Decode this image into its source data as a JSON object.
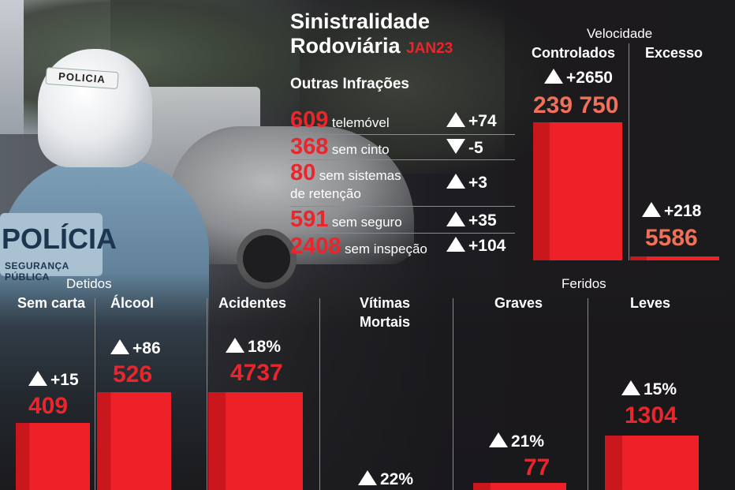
{
  "header": {
    "title_line1": "Sinistralidade",
    "title_line2": "Rodoviária",
    "period": "JAN23"
  },
  "background": {
    "helmet_text": "POLICIA",
    "vest_text": "POLÍCIA",
    "vest_subtext": "SEGURANÇA PÚBLICA"
  },
  "infractions": {
    "heading": "Outras Infrações",
    "rows": [
      {
        "value": "609",
        "label": "telemóvel",
        "direction": "up",
        "change": "+74"
      },
      {
        "value": "368",
        "label": "sem cinto",
        "direction": "down",
        "change": "-5"
      },
      {
        "value": "80",
        "label_line1": "sem sistemas",
        "label_line2": "de retenção",
        "direction": "up",
        "change": "+3"
      },
      {
        "value": "591",
        "label": "sem seguro",
        "direction": "up",
        "change": "+35"
      },
      {
        "value": "2408",
        "label": "sem inspeção",
        "direction": "up",
        "change": "+104"
      }
    ]
  },
  "speed": {
    "group_label": "Velocidade",
    "columns": [
      {
        "label": "Controlados",
        "change": "+2650",
        "value_text": "239 750"
      },
      {
        "label": "Excesso",
        "change": "+218",
        "value_text": "5586"
      }
    ]
  },
  "groups": {
    "detidos": "Detidos",
    "feridos": "Feridos"
  },
  "chart_data": {
    "type": "bar",
    "categories": [
      "Sem carta",
      "Álcool",
      "Acidentes",
      "Vítimas Mortais",
      "Graves",
      "Leves"
    ],
    "category_display": [
      {
        "line1": "Sem carta",
        "line2": ""
      },
      {
        "line1": "Álcool",
        "line2": ""
      },
      {
        "line1": "Acidentes",
        "line2": ""
      },
      {
        "line1": "Vítimas",
        "line2": "Mortais"
      },
      {
        "line1": "Graves",
        "line2": ""
      },
      {
        "line1": "Leves",
        "line2": ""
      }
    ],
    "values": [
      409,
      526,
      4737,
      null,
      77,
      1304
    ],
    "value_labels": [
      "409",
      "526",
      "4737",
      "",
      "77",
      "1304"
    ],
    "changes": [
      "+15",
      "+86",
      "18%",
      "22%",
      "21%",
      "15%"
    ],
    "speed_bars": {
      "categories": [
        "Controlados",
        "Excesso"
      ],
      "values": [
        239750,
        5586
      ]
    }
  },
  "colors": {
    "accent_red": "#e8262c",
    "value_salmon": "#f0705a",
    "bar_red": "#ee2028",
    "bar_shade": "#c9171d"
  }
}
